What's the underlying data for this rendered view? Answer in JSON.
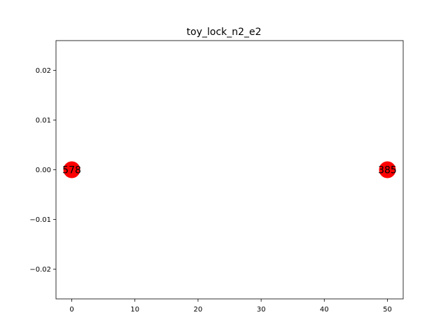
{
  "chart_data": {
    "type": "scatter",
    "title": "toy_lock_n2_e2",
    "xlabel": "",
    "ylabel": "",
    "xlim": [
      -2.5,
      52.5
    ],
    "ylim": [
      -0.026,
      0.026
    ],
    "x_ticks": [
      0,
      10,
      20,
      30,
      40,
      50
    ],
    "x_tick_labels": [
      "0",
      "10",
      "20",
      "30",
      "40",
      "50"
    ],
    "y_ticks": [
      0.02,
      0.01,
      0.0,
      -0.01,
      -0.02
    ],
    "y_tick_labels": [
      "0.02",
      "0.01",
      "0.00",
      "−0.01",
      "−0.02"
    ],
    "grid": false,
    "marker_color": "#ff0000",
    "points": [
      {
        "x": 0,
        "y": 0,
        "label": "578"
      },
      {
        "x": 50,
        "y": 0,
        "label": "385"
      }
    ]
  }
}
